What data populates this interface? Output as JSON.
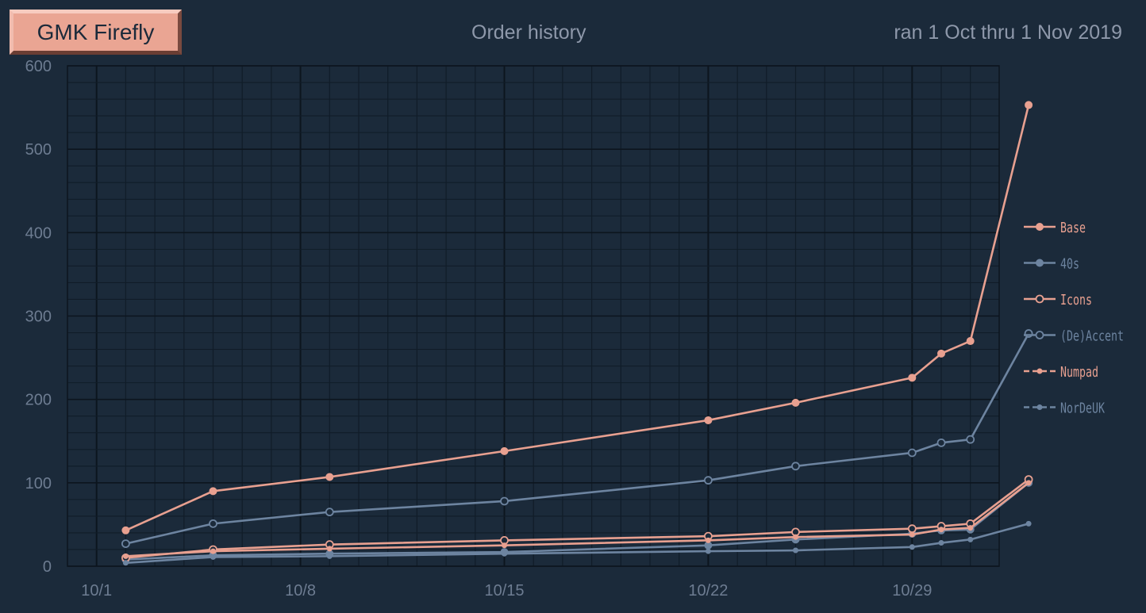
{
  "header": {
    "badge": "GMK Firefly",
    "title": "Order history",
    "subtitle": "ran 1 Oct thru 1 Nov 2019"
  },
  "colors": {
    "background": "#1b2a3a",
    "plot_background": "#1b2a3a",
    "grid_major": "#0c151e",
    "grid_minor": "#101c28",
    "axis_text": "#6d7c91",
    "salmon": "#e8a090",
    "slate": "#6d84a0"
  },
  "chart_data": {
    "type": "line",
    "x_ticks": [
      {
        "label": "10/1",
        "day": 1
      },
      {
        "label": "10/8",
        "day": 8
      },
      {
        "label": "10/15",
        "day": 15
      },
      {
        "label": "10/22",
        "day": 22
      },
      {
        "label": "10/29",
        "day": 29
      }
    ],
    "xlim": [
      1,
      33
    ],
    "ylim": [
      0,
      600
    ],
    "y_ticks": [
      0,
      100,
      200,
      300,
      400,
      500,
      600
    ],
    "grid": true,
    "legend_position": "right",
    "x": [
      2,
      5,
      9,
      15,
      22,
      25,
      29,
      30,
      31,
      33
    ],
    "series": [
      {
        "name": "Base",
        "color": "#e8a090",
        "marker": "filled",
        "style": "solid",
        "values": [
          43,
          90,
          107,
          138,
          175,
          196,
          226,
          255,
          270,
          553
        ]
      },
      {
        "name": "40s",
        "color": "#6d84a0",
        "marker": "filled",
        "style": "solid",
        "values": [
          8,
          13,
          15,
          17,
          25,
          32,
          39,
          43,
          44,
          100
        ]
      },
      {
        "name": "Icons",
        "color": "#e8a090",
        "marker": "open",
        "style": "solid",
        "values": [
          10,
          20,
          26,
          31,
          36,
          41,
          45,
          48,
          51,
          104
        ]
      },
      {
        "name": "(De)Accent",
        "color": "#6d84a0",
        "marker": "open",
        "style": "solid",
        "values": [
          27,
          51,
          65,
          78,
          103,
          120,
          136,
          148,
          152,
          279
        ]
      },
      {
        "name": "Numpad",
        "color": "#e8a090",
        "marker": "small",
        "style": "solid",
        "values": [
          12,
          18,
          21,
          25,
          31,
          35,
          38,
          44,
          46,
          100
        ]
      },
      {
        "name": "NorDeUK",
        "color": "#6d84a0",
        "marker": "small",
        "style": "solid",
        "values": [
          4,
          11,
          12,
          15,
          18,
          19,
          23,
          28,
          32,
          51
        ]
      }
    ]
  }
}
